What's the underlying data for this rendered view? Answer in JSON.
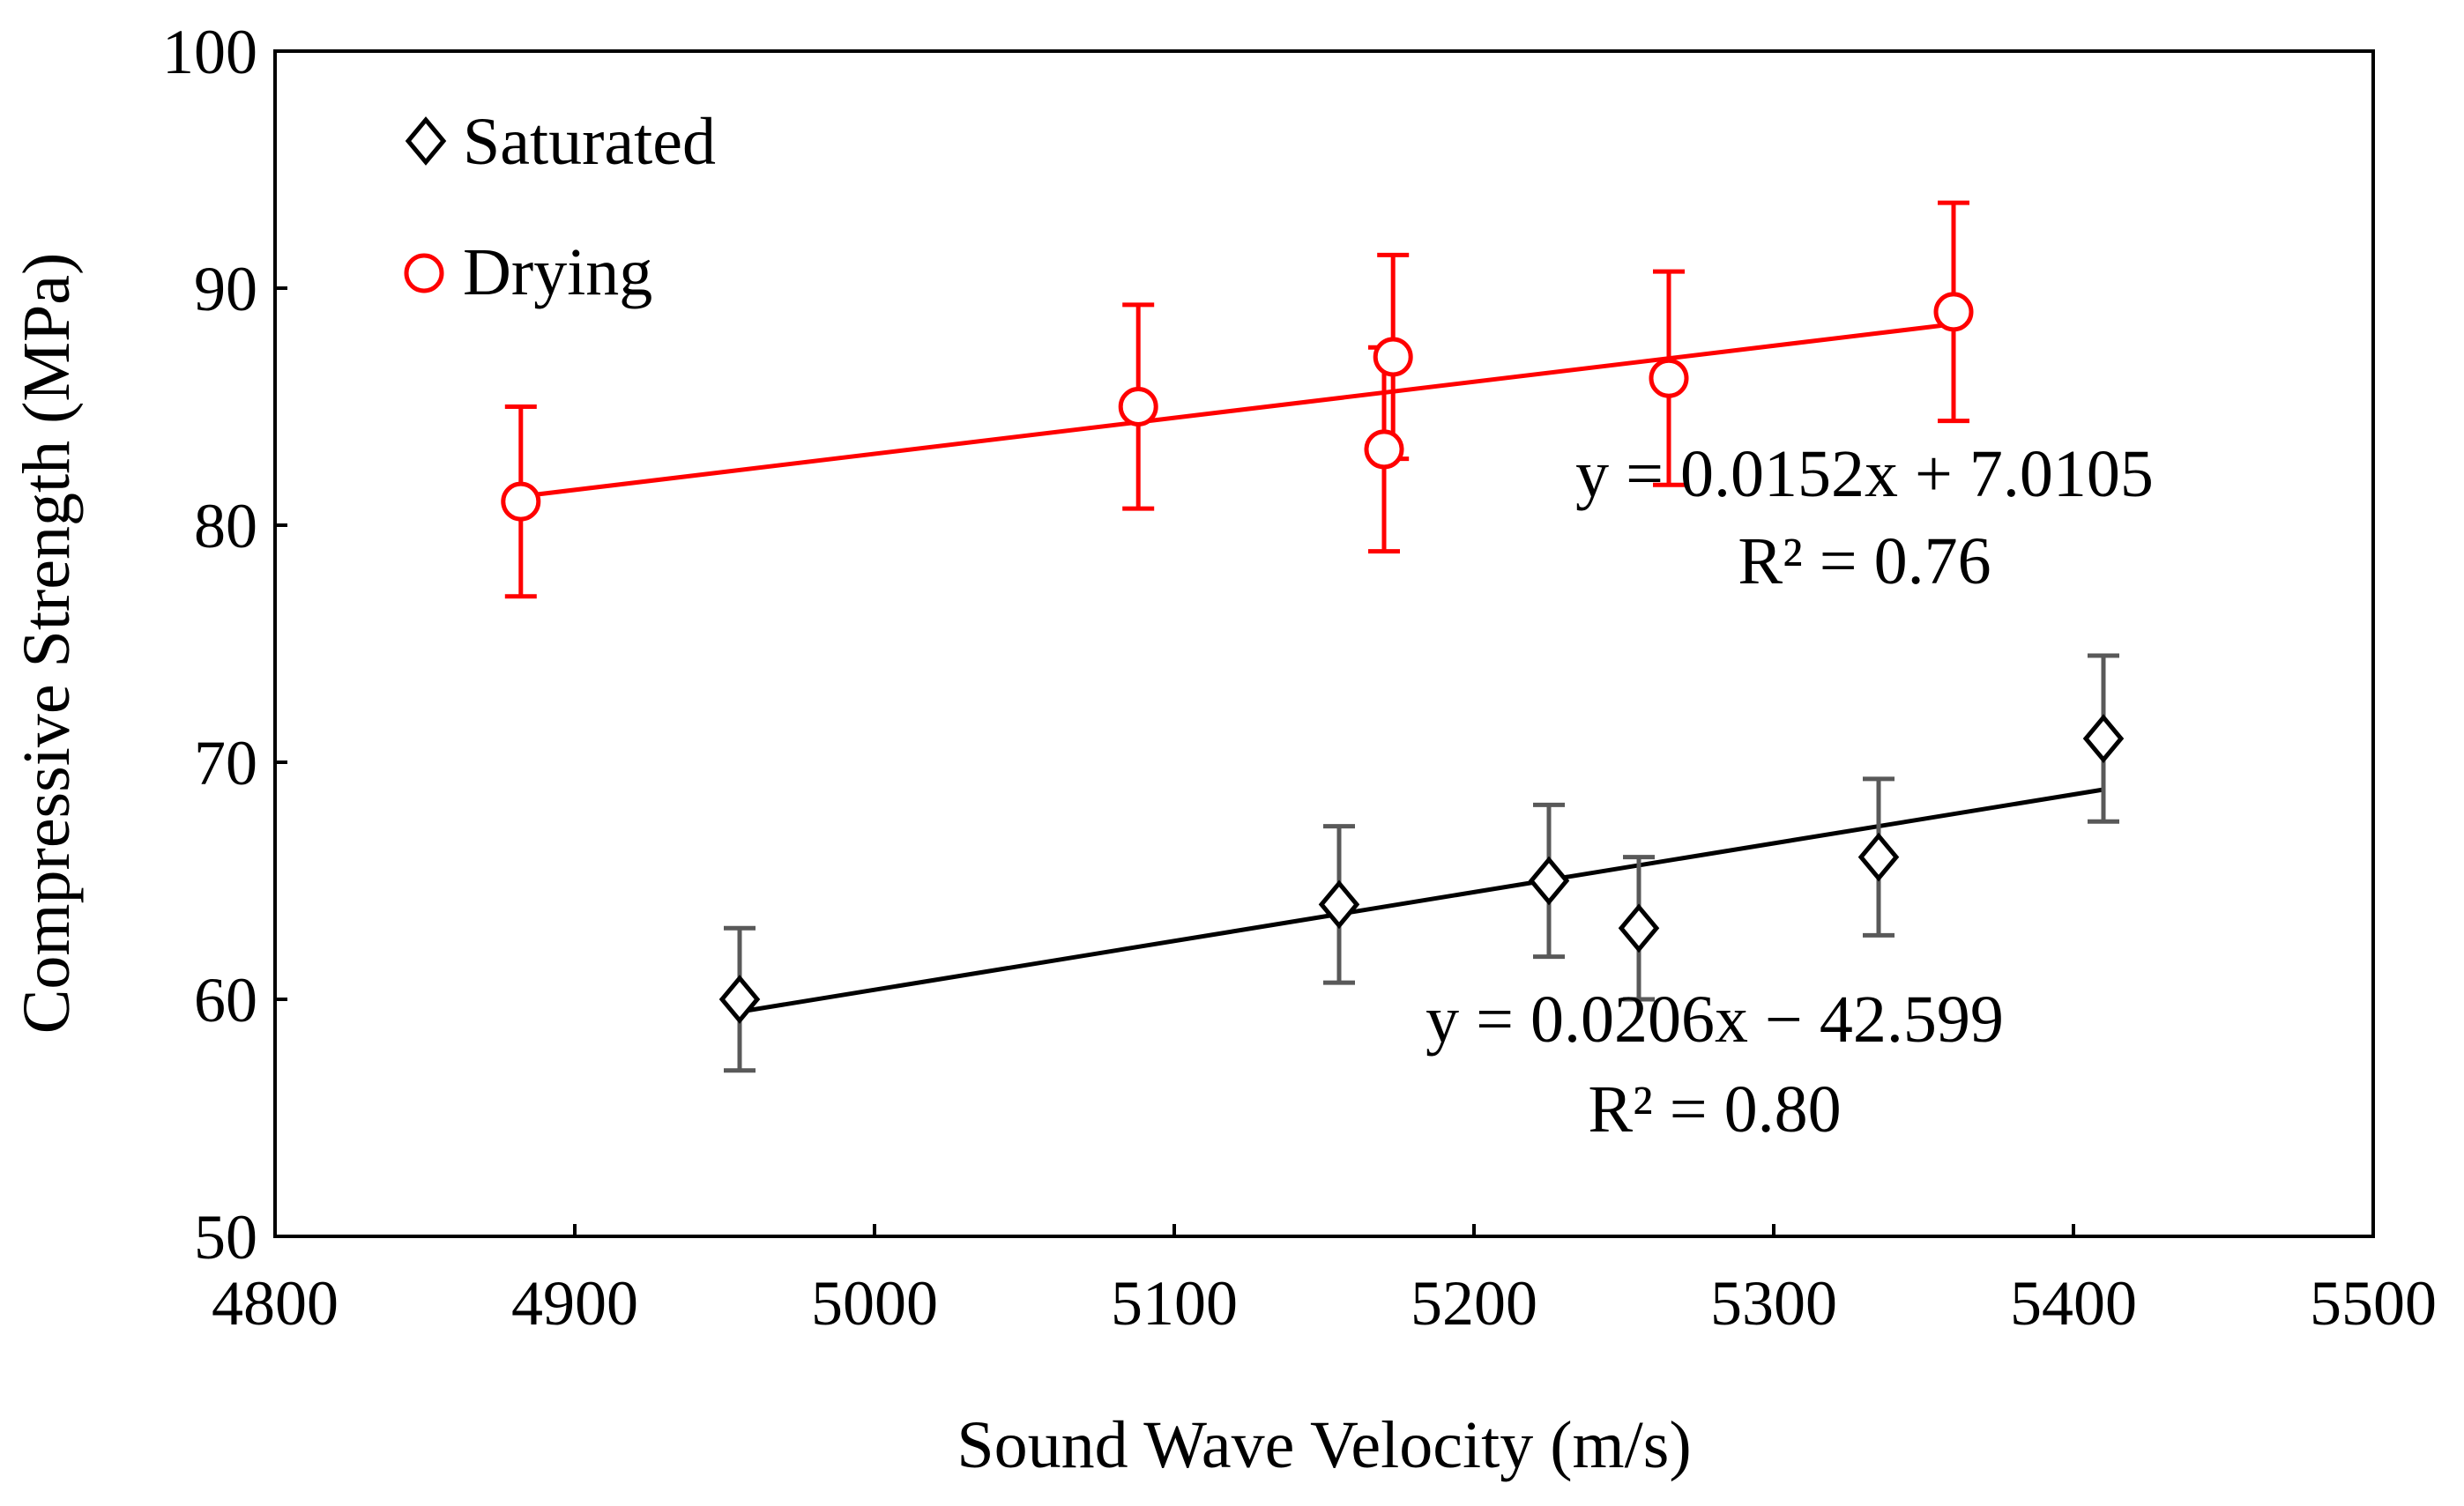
{
  "chart_data": {
    "type": "scatter",
    "title": "",
    "xlabel": "Sound Wave Velocity  (m/s)",
    "ylabel": "Compressive Strength (MPa)",
    "xlim": [
      4800,
      5500
    ],
    "ylim": [
      50,
      100
    ],
    "xticks": [
      4800,
      4900,
      5000,
      5100,
      5200,
      5300,
      5400,
      5500
    ],
    "yticks": [
      50,
      60,
      70,
      80,
      90,
      100
    ],
    "grid": false,
    "legend_position": "top-left",
    "series": [
      {
        "name": "Saturated",
        "marker": "diamond",
        "color": "#000000",
        "error_color": "#595959",
        "x": [
          4955,
          5155,
          5225,
          5255,
          5335,
          5410
        ],
        "y": [
          60,
          64,
          65,
          63,
          66,
          71
        ],
        "y_err": [
          3,
          3.3,
          3.2,
          3,
          3.3,
          3.5
        ],
        "trendline": {
          "slope": 0.0206,
          "intercept": -42.599,
          "x_range": [
            4955,
            5410
          ]
        },
        "equation": "y = 0.0206x − 42.599",
        "r2": "R² = 0.80"
      },
      {
        "name": "Drying",
        "marker": "circle",
        "color": "#ff0000",
        "error_color": "#ff0000",
        "x": [
          4882,
          5088,
          5170,
          5173,
          5265,
          5360
        ],
        "y": [
          81,
          85,
          83.2,
          87.1,
          86.2,
          89
        ],
        "y_err": [
          4,
          4.3,
          4.3,
          4.3,
          4.5,
          4.6
        ],
        "trendline": {
          "slope": 0.0152,
          "intercept": 7.0105,
          "x_range": [
            4882,
            5360
          ]
        },
        "equation": "y = 0.0152x + 7.0105",
        "r2": "R² = 0.76"
      }
    ]
  }
}
